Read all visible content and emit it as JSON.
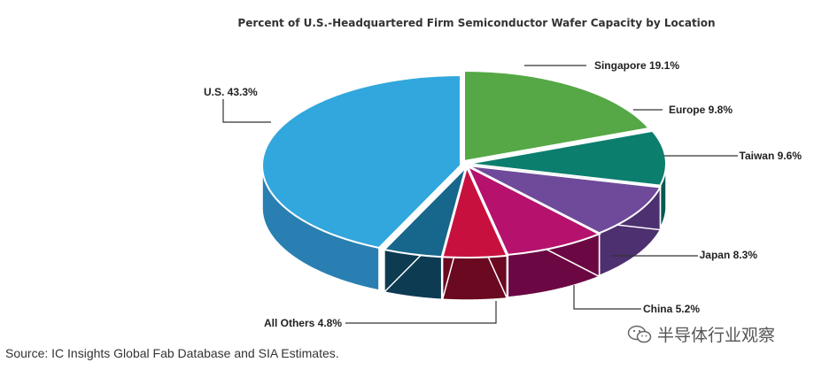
{
  "chart_data": {
    "type": "pie",
    "title": "Percent of U.S.-Headquartered Firm Semiconductor Wafer Capacity by Location",
    "slices": [
      {
        "label": "U.S. 43.3%",
        "value": 43.3,
        "color": "#31a7dd",
        "side": "#2a7fb2"
      },
      {
        "label": "Singapore 19.1%",
        "value": 19.1,
        "color": "#55a845",
        "side": "#3f7d33"
      },
      {
        "label": "Europe 9.8%",
        "value": 9.8,
        "color": "#0b7e6e",
        "side": "#075a4f"
      },
      {
        "label": "Taiwan 9.6%",
        "value": 9.6,
        "color": "#6f4a9a",
        "side": "#4d3070"
      },
      {
        "label": "Japan 8.3%",
        "value": 8.3,
        "color": "#b5116d",
        "side": "#6b0843"
      },
      {
        "label": "China 5.2%",
        "value": 5.2,
        "color": "#c8103f",
        "side": "#6a0920"
      },
      {
        "label": "All Others 4.8%",
        "value": 4.8,
        "color": "#17668c",
        "side": "#0d3b52"
      }
    ]
  },
  "source": "Source: IC Insights Global Fab Database and SIA Estimates.",
  "watermark": "半导体行业观察",
  "watermark_icon": "wechat-icon"
}
